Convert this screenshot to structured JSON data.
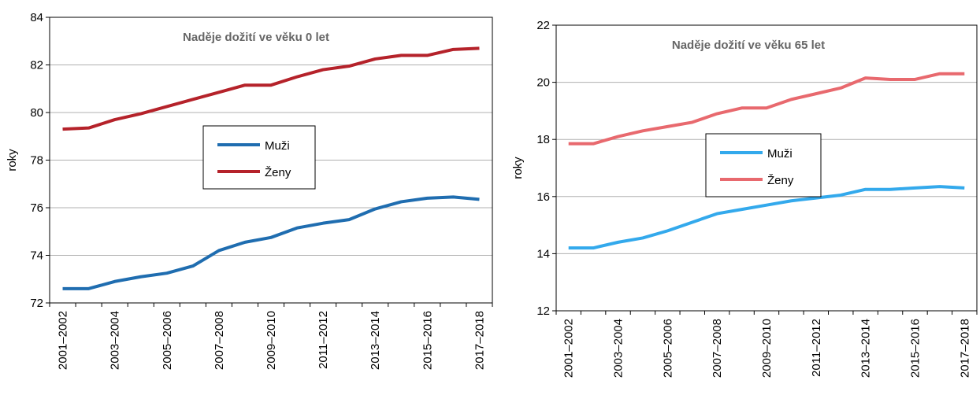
{
  "chart_data": [
    {
      "type": "line",
      "title": "Naděje dožití ve věku 0 let",
      "y_label": "roky",
      "categories": [
        "2001–2002",
        null,
        "2003–2004",
        null,
        "2005–2006",
        null,
        "2007–2008",
        null,
        "2009–2010",
        null,
        "2011–2012",
        null,
        "2013–2014",
        null,
        "2015–2016",
        null,
        "2017–2018"
      ],
      "series": [
        {
          "name": "Muži",
          "color": "#1f6db0",
          "values": [
            72.6,
            72.6,
            72.9,
            73.1,
            73.25,
            73.55,
            74.2,
            74.55,
            74.75,
            75.15,
            75.35,
            75.5,
            75.95,
            76.25,
            76.4,
            76.45,
            76.35
          ]
        },
        {
          "name": "Ženy",
          "color": "#b5222a",
          "values": [
            79.3,
            79.35,
            79.7,
            79.95,
            80.25,
            80.55,
            80.85,
            81.15,
            81.15,
            81.5,
            81.8,
            81.95,
            82.25,
            82.4,
            82.4,
            82.65,
            82.7
          ]
        }
      ],
      "ylim": [
        72,
        84
      ],
      "yticks": [
        72,
        74,
        76,
        78,
        80,
        82,
        84
      ],
      "grid": true
    },
    {
      "type": "line",
      "title": "Naděje dožití ve věku 65 let",
      "y_label": "roky",
      "categories": [
        "2001–2002",
        null,
        "2003–2004",
        null,
        "2005–2006",
        null,
        "2007–2008",
        null,
        "2009–2010",
        null,
        "2011–2012",
        null,
        "2013–2014",
        null,
        "2015–2016",
        null,
        "2017–2018"
      ],
      "series": [
        {
          "name": "Muži",
          "color": "#33a9ec",
          "values": [
            14.2,
            14.2,
            14.4,
            14.55,
            14.8,
            15.1,
            15.4,
            15.55,
            15.7,
            15.85,
            15.95,
            16.05,
            16.25,
            16.25,
            16.3,
            16.35,
            16.3
          ]
        },
        {
          "name": "Ženy",
          "color": "#e8696e",
          "values": [
            17.85,
            17.85,
            18.1,
            18.3,
            18.45,
            18.6,
            18.9,
            19.1,
            19.1,
            19.4,
            19.6,
            19.8,
            20.15,
            20.1,
            20.1,
            20.3,
            20.3
          ]
        }
      ],
      "ylim": [
        12,
        22
      ],
      "yticks": [
        12,
        14,
        16,
        18,
        20,
        22
      ],
      "grid": true
    }
  ]
}
